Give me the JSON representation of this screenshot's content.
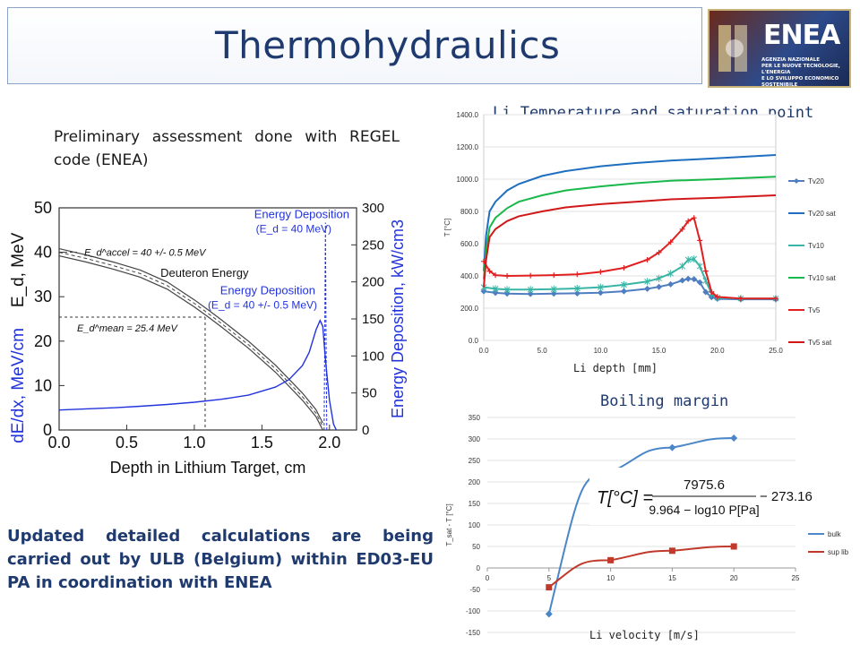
{
  "slide": {
    "title": "Thermohydraulics",
    "logo": {
      "name": "ENEA",
      "subtitle_lines": [
        "AGENZIA NAZIONALE",
        "PER LE NUOVE TECNOLOGIE, L'ENERGIA",
        "E LO SVILUPPO ECONOMICO SOSTENIBILE"
      ]
    },
    "text_preliminary": "Preliminary assessment done with REGEL code (ENEA)",
    "text_updated": "Updated detailed calculations are being carried out by ULB (Belgium) within ED03-EU PA in coordination with ENEA",
    "colors": {
      "title": "#1f3a6e",
      "accent": "#1f3a6e",
      "bold_text": "#1f3a6e"
    }
  },
  "chart_data": [
    {
      "id": "deuteron",
      "type": "line",
      "xlabel": "Depth in Lithium Target, cm",
      "ylabel_left": "E_d, MeV",
      "ylabel_left_lower": "dE/dx, MeV/cm",
      "ylabel_right": "Energy Deposition, kW/cm3",
      "xlim": [
        0.0,
        2.2
      ],
      "ylim_left": [
        0,
        50
      ],
      "ylim_right": [
        0,
        300
      ],
      "x_ticks": [
        "0.0",
        "0.5",
        "1.0",
        "1.5",
        "2.0"
      ],
      "y_left_ticks": [
        "0",
        "10",
        "20",
        "30",
        "40",
        "50"
      ],
      "y_right_ticks": [
        "0",
        "50",
        "100",
        "150",
        "200",
        "250",
        "300"
      ],
      "annotations": [
        {
          "text": "E_d^accel = 40 +/- 0.5 MeV",
          "x": 0.0,
          "y": 40
        },
        {
          "text": "Deuteron Energy",
          "x": 0.75,
          "y": 34.5
        },
        {
          "text": "E_d^mean = 25.4 MeV",
          "x": 0.0,
          "y": 25.4
        },
        {
          "text": "Energy Deposition",
          "line2": "(E_d = 40 MeV)",
          "x": 1.95,
          "y": 285
        },
        {
          "text": "Energy Deposition",
          "line2": "(E_d = 40 +/- 0.5 MeV)",
          "x": 1.9,
          "y": 150
        }
      ],
      "series": [
        {
          "name": "Deuteron Energy",
          "axis": "left",
          "color": "#444444",
          "x": [
            0.0,
            0.2,
            0.4,
            0.6,
            0.8,
            1.0,
            1.1,
            1.2,
            1.4,
            1.6,
            1.8,
            1.9,
            1.95
          ],
          "y": [
            40,
            38.6,
            37,
            35.2,
            32.5,
            28.5,
            26.3,
            24,
            19.2,
            13.8,
            7.5,
            3.8,
            0.8
          ]
        },
        {
          "name": "Energy Deposition (E_d = 40 +/- 0.5 MeV)",
          "axis": "right",
          "color": "#2233dd",
          "x": [
            0.0,
            0.2,
            0.4,
            0.6,
            0.8,
            1.0,
            1.2,
            1.4,
            1.6,
            1.7,
            1.8,
            1.85,
            1.9,
            1.93,
            1.95,
            1.97,
            2.0,
            2.03,
            2.05
          ],
          "y": [
            27,
            28.5,
            30,
            32,
            34.5,
            37.5,
            41.5,
            47,
            58,
            68,
            87,
            105,
            135,
            148,
            140,
            95,
            40,
            8,
            0
          ]
        },
        {
          "name": "Energy Deposition (E_d = 40 MeV)",
          "axis": "right",
          "color": "#2233dd",
          "x": [
            1.96,
            1.965,
            1.97,
            1.975,
            1.98
          ],
          "y": [
            0,
            120,
            280,
            120,
            0
          ]
        }
      ],
      "markers": {
        "mean_depth": 1.08,
        "mean_energy": 25.4
      }
    },
    {
      "id": "temperature",
      "type": "line",
      "title": "Li Temperature and saturation point",
      "xlabel": "Li depth [mm]",
      "ylabel": "T [°C]",
      "xlim": [
        0,
        25
      ],
      "ylim": [
        0,
        1400
      ],
      "x_ticks": [
        "0.0",
        "5.0",
        "10.0",
        "15.0",
        "20.0",
        "25.0"
      ],
      "y_ticks": [
        "0.0",
        "200.0",
        "400.0",
        "600.0",
        "800.0",
        "1000.0",
        "1200.0",
        "1400.0"
      ],
      "series": [
        {
          "name": "Tv20",
          "color": "#4f7ec0",
          "marker": "diamond",
          "x": [
            0,
            1,
            2,
            4,
            6,
            8,
            10,
            12,
            14,
            15,
            16,
            17,
            17.5,
            18,
            18.5,
            19,
            19.5,
            20,
            22,
            25
          ],
          "y": [
            305,
            295,
            290,
            288,
            290,
            292,
            296,
            305,
            320,
            332,
            348,
            372,
            382,
            380,
            360,
            300,
            268,
            258,
            255,
            255
          ]
        },
        {
          "name": "Tv20 sat",
          "color": "#1f6fc0",
          "x": [
            0,
            0.2,
            0.5,
            1,
            2,
            3,
            5,
            7,
            10,
            13,
            16,
            20,
            25
          ],
          "y": [
            430,
            650,
            800,
            860,
            930,
            970,
            1020,
            1050,
            1080,
            1100,
            1115,
            1130,
            1150
          ]
        },
        {
          "name": "Tv10",
          "color": "#3ab5a5",
          "marker": "star",
          "x": [
            0,
            1,
            2,
            4,
            6,
            8,
            10,
            12,
            14,
            15,
            16,
            17,
            17.5,
            18,
            18.5,
            19,
            19.5,
            20,
            22,
            25
          ],
          "y": [
            330,
            320,
            315,
            315,
            318,
            322,
            330,
            345,
            365,
            385,
            415,
            460,
            500,
            505,
            460,
            370,
            290,
            265,
            260,
            260
          ]
        },
        {
          "name": "Tv10 sat",
          "color": "#19b84a",
          "x": [
            0,
            0.2,
            0.5,
            1,
            2,
            3,
            5,
            7,
            10,
            13,
            16,
            20,
            25
          ],
          "y": [
            380,
            560,
            700,
            760,
            820,
            860,
            900,
            930,
            955,
            975,
            990,
            1000,
            1015
          ]
        },
        {
          "name": "Tv5",
          "color": "#e02020",
          "marker": "plus",
          "x": [
            0,
            0.5,
            1,
            2,
            4,
            6,
            8,
            10,
            12,
            14,
            15,
            16,
            17,
            17.5,
            18,
            18.5,
            19,
            19.5,
            20,
            22,
            25
          ],
          "y": [
            490,
            430,
            405,
            400,
            402,
            405,
            410,
            425,
            450,
            500,
            545,
            610,
            690,
            740,
            760,
            620,
            430,
            300,
            270,
            260,
            260
          ]
        },
        {
          "name": "Tv5 sat",
          "color": "#d01818",
          "x": [
            0,
            0.2,
            0.5,
            1,
            2,
            3,
            5,
            7,
            10,
            13,
            16,
            20,
            25
          ],
          "y": [
            330,
            500,
            640,
            690,
            740,
            770,
            800,
            825,
            845,
            860,
            875,
            885,
            900
          ]
        }
      ],
      "legend": "right"
    },
    {
      "id": "boiling",
      "type": "line",
      "title": "Boiling margin",
      "xlabel": "Li velocity [m/s]",
      "ylabel": "T_sat - T [°C]",
      "xlim": [
        0,
        25
      ],
      "ylim": [
        -150,
        350
      ],
      "x_ticks": [
        "0",
        "5",
        "10",
        "15",
        "20",
        "25"
      ],
      "y_ticks": [
        "-150",
        "-100",
        "-50",
        "0",
        "50",
        "100",
        "150",
        "200",
        "250",
        "300",
        "350"
      ],
      "formula": {
        "lhs": "T[°C]",
        "numerator": "7975.6",
        "denominator": "9.964 − log10 P[Pa]",
        "tail": "− 273.16"
      },
      "series": [
        {
          "name": "bulk",
          "color": "#4a86c8",
          "marker": "diamond",
          "x": [
            5,
            10,
            15,
            20
          ],
          "y": [
            -107,
            222,
            280,
            302
          ]
        },
        {
          "name": "sup lib",
          "color": "#c0392b",
          "marker": "square",
          "x": [
            5,
            10,
            15,
            20
          ],
          "y": [
            -45,
            18,
            40,
            50
          ]
        }
      ],
      "legend": "right"
    }
  ]
}
